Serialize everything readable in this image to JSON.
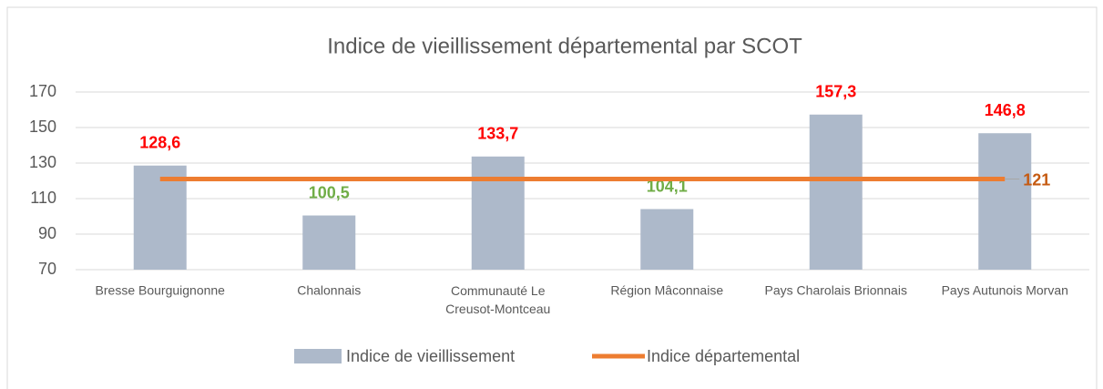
{
  "chart_data": {
    "type": "bar",
    "title": "Indice de vieillissement départemental par SCOT",
    "categories": [
      "Bresse Bourguignonne",
      "Chalonnais",
      "Communauté Le Creusot-Montceau",
      "Région Mâconnaise",
      "Pays Charolais Brionnais",
      "Pays Autunois Morvan"
    ],
    "series": [
      {
        "name": "Indice de vieillissement",
        "type": "bar",
        "color": "#adb9ca",
        "values": [
          128.6,
          100.5,
          133.7,
          104.1,
          157.3,
          146.8
        ],
        "value_labels": [
          "128,6",
          "100,5",
          "133,7",
          "104,1",
          "157,3",
          "146,8"
        ],
        "value_label_colors": [
          "#ff0000",
          "#70ad47",
          "#ff0000",
          "#70ad47",
          "#ff0000",
          "#ff0000"
        ]
      },
      {
        "name": "Indice départemental",
        "type": "line",
        "color": "#ed7d31",
        "values": [
          121,
          121,
          121,
          121,
          121,
          121
        ],
        "end_label_color": "#c55a11"
      }
    ],
    "ylim": [
      70,
      170
    ],
    "yticks": [
      70,
      90,
      110,
      130,
      150,
      170
    ],
    "grid": true,
    "legend": "bottom"
  }
}
